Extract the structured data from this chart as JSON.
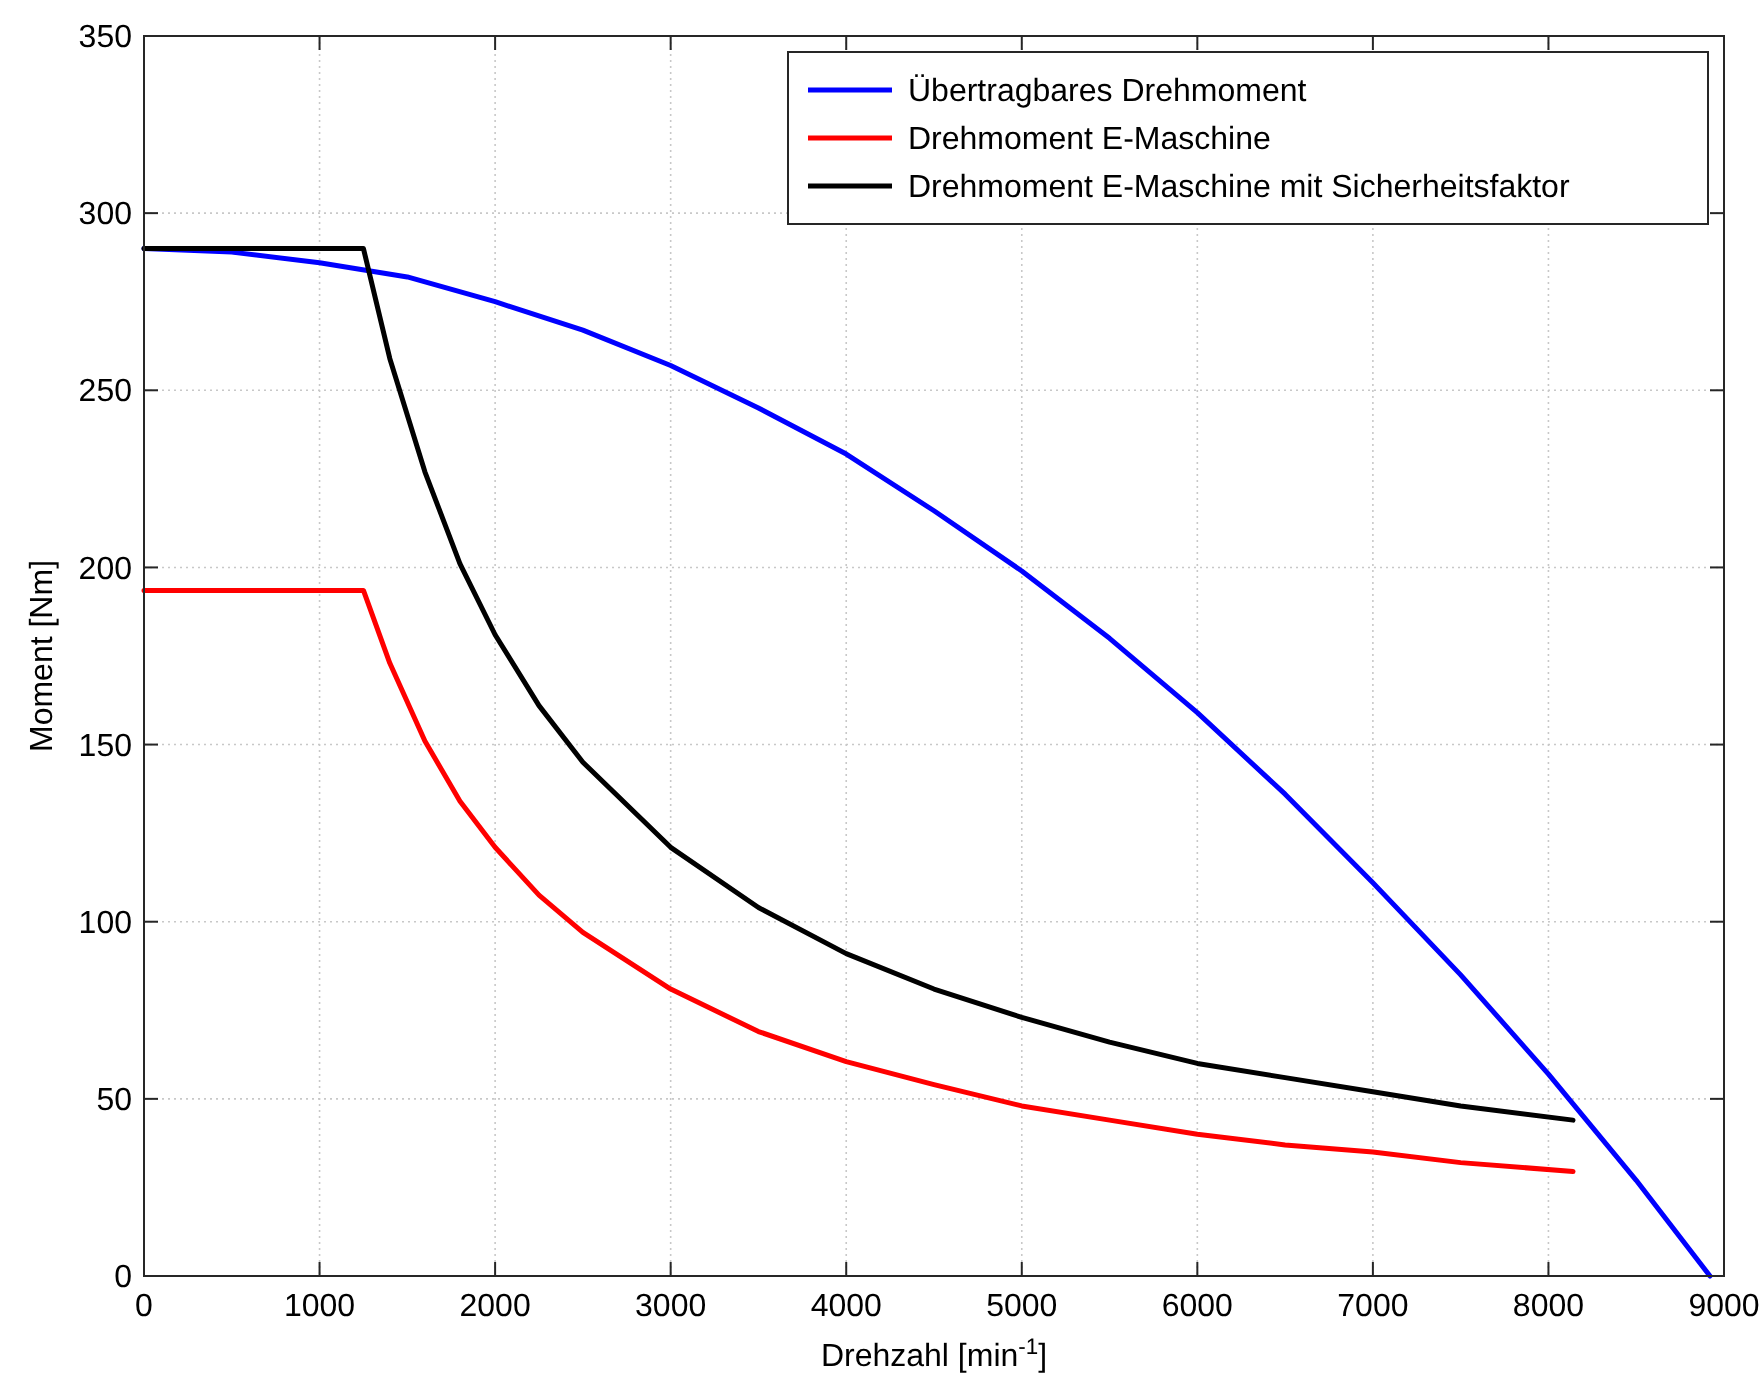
{
  "chart_data": {
    "type": "line",
    "xlabel": "Drehzahl [min$^{-1}$]",
    "ylabel": "Moment [Nm]",
    "xlim": [
      0,
      9000
    ],
    "ylim": [
      0,
      350
    ],
    "xticks": [
      0,
      1000,
      2000,
      3000,
      4000,
      5000,
      6000,
      7000,
      8000,
      9000
    ],
    "yticks": [
      0,
      50,
      100,
      150,
      200,
      250,
      300,
      350
    ],
    "grid": true,
    "legend": "top right",
    "line_style": "solid",
    "marker": "none",
    "series": [
      {
        "name": "Übertragbares Drehmoment",
        "color": "#0000ff",
        "x": [
          0,
          500,
          1000,
          1500,
          2000,
          2500,
          3000,
          3500,
          4000,
          4500,
          5000,
          5500,
          6000,
          6500,
          7000,
          7500,
          8000,
          8500,
          8920
        ],
        "values": [
          290,
          289,
          286,
          282,
          275,
          267,
          257,
          245,
          232,
          216,
          199,
          180,
          159,
          136,
          111,
          85,
          57,
          27,
          0
        ]
      },
      {
        "name": "Drehmoment E-Maschine",
        "color": "#ff0000",
        "x": [
          0,
          1250,
          1400,
          1600,
          1800,
          2000,
          2250,
          2500,
          3000,
          3500,
          4000,
          4500,
          5000,
          5500,
          6000,
          6500,
          7000,
          7500,
          8140
        ],
        "values": [
          193.5,
          193.5,
          173,
          151,
          134,
          121,
          107.5,
          97,
          81,
          69,
          60.5,
          54,
          48,
          44,
          40,
          37,
          35,
          32,
          29.5
        ]
      },
      {
        "name": "Drehmoment E-Maschine mit Sicherheitsfaktor",
        "color": "#000000",
        "x": [
          0,
          1250,
          1400,
          1600,
          1800,
          2000,
          2250,
          2500,
          3000,
          3500,
          4000,
          4500,
          5000,
          5500,
          6000,
          6500,
          7000,
          7500,
          8140
        ],
        "values": [
          290,
          290,
          259,
          227,
          201,
          181,
          161,
          145,
          121,
          104,
          91,
          81,
          73,
          66,
          60,
          56,
          52,
          48,
          44
        ]
      }
    ]
  }
}
